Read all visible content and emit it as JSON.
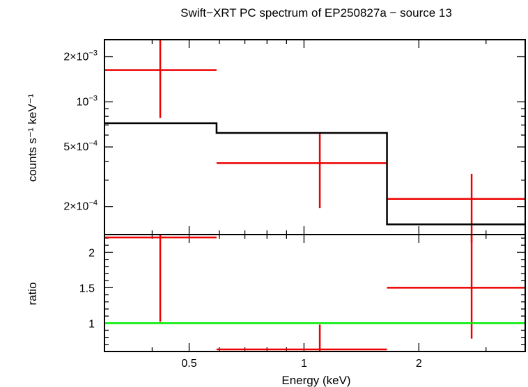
{
  "chart_data": [
    {
      "type": "line",
      "panel": "top",
      "title": "Swift−XRT PC spectrum of EP250827a − source 13",
      "ylabel": "counts s⁻¹ keV⁻¹",
      "yscale": "log",
      "xscale": "log",
      "xlim": [
        0.3,
        3.8
      ],
      "ylim": [
        0.00013,
        0.0026
      ],
      "yticks": [
        {
          "value": 0.002,
          "mant": "2×10",
          "exp": "−3"
        },
        {
          "value": 0.001,
          "mant": "10",
          "exp": "−3"
        },
        {
          "value": 0.0005,
          "mant": "5×10",
          "exp": "−4"
        },
        {
          "value": 0.0002,
          "mant": "2×10",
          "exp": "−4"
        }
      ],
      "series": [
        {
          "kind": "data",
          "color": "#ee0000",
          "points": [
            {
              "xlo": 0.3,
              "xhi": 0.59,
              "x": 0.42,
              "y": 0.00163,
              "ylo": 0.00078,
              "yhi": 0.0026
            },
            {
              "xlo": 0.59,
              "xhi": 1.65,
              "x": 1.1,
              "y": 0.00039,
              "ylo": 0.000195,
              "yhi": 0.00061
            },
            {
              "xlo": 1.65,
              "xhi": 3.8,
              "x": 2.75,
              "y": 0.000225,
              "ylo": 0.000115,
              "yhi": 0.00033
            }
          ]
        },
        {
          "kind": "model",
          "color": "#000000",
          "steps": [
            {
              "xlo": 0.3,
              "xhi": 0.59,
              "y": 0.00072
            },
            {
              "xlo": 0.59,
              "xhi": 1.65,
              "y": 0.00062
            },
            {
              "xlo": 1.65,
              "xhi": 3.8,
              "y": 0.000152
            }
          ]
        }
      ]
    },
    {
      "type": "line",
      "panel": "bottom",
      "xlabel": "Energy (keV)",
      "ylabel": "ratio",
      "xscale": "log",
      "xlim": [
        0.3,
        3.8
      ],
      "ylim": [
        0.6,
        2.25
      ],
      "xticks": [
        {
          "value": 0.5,
          "label": "0.5"
        },
        {
          "value": 1,
          "label": "1"
        },
        {
          "value": 2,
          "label": "2"
        }
      ],
      "yticks": [
        {
          "value": 2,
          "label": "2"
        },
        {
          "value": 1.5,
          "label": "1.5"
        },
        {
          "value": 1,
          "label": "1"
        }
      ],
      "series": [
        {
          "kind": "data",
          "color": "#ee0000",
          "points": [
            {
              "xlo": 0.3,
              "xhi": 0.59,
              "x": 0.42,
              "y": 2.21,
              "ylo": 1.02,
              "yhi": 2.25
            },
            {
              "xlo": 0.59,
              "xhi": 1.65,
              "x": 1.1,
              "y": 0.63,
              "ylo": 0.6,
              "yhi": 0.98
            },
            {
              "xlo": 1.65,
              "xhi": 3.8,
              "x": 2.75,
              "y": 1.5,
              "ylo": 0.78,
              "yhi": 2.25
            }
          ]
        },
        {
          "kind": "reference",
          "color": "#00ee00",
          "y": 1
        }
      ]
    }
  ]
}
